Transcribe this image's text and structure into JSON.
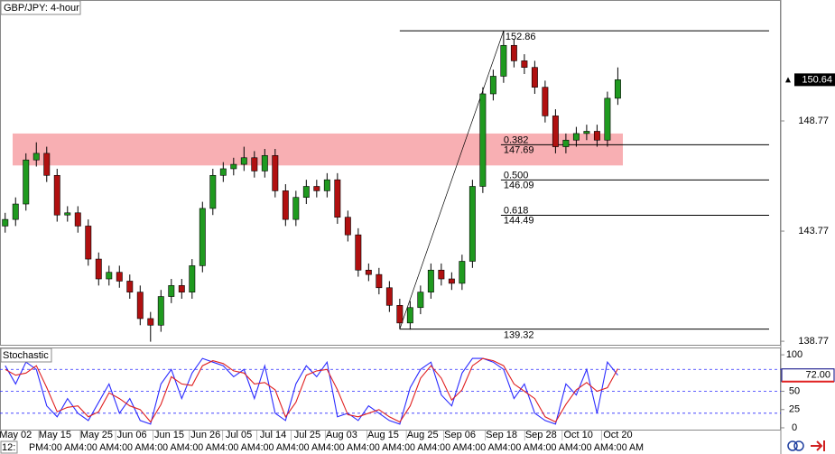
{
  "chart_data": {
    "type": "candlestick",
    "title": "GBP/JPY: 4-hour",
    "ylim": [
      138.61,
      154.26
    ],
    "yticks": [
      138.77,
      143.77,
      148.77
    ],
    "xlim": [
      -0.5,
      74.7
    ],
    "xticks": [
      {
        "value": 1,
        "label": "May 02"
      },
      {
        "value": 4.8,
        "label": "May 15"
      },
      {
        "value": 8.8,
        "label": "May 25"
      },
      {
        "value": 12.2,
        "label": "Jun 06"
      },
      {
        "value": 15.8,
        "label": "Jun 15"
      },
      {
        "value": 19.3,
        "label": "Jun 26"
      },
      {
        "value": 22.5,
        "label": "Jul 05"
      },
      {
        "value": 25.8,
        "label": "Jul 14"
      },
      {
        "value": 29.1,
        "label": "Jul 25"
      },
      {
        "value": 32.4,
        "label": "Aug 03"
      },
      {
        "value": 36.4,
        "label": "Aug 15"
      },
      {
        "value": 40.2,
        "label": "Aug 25"
      },
      {
        "value": 43.8,
        "label": "Sep 06"
      },
      {
        "value": 47.8,
        "label": "Sep 18"
      },
      {
        "value": 51.6,
        "label": "Sep 28"
      },
      {
        "value": 55.2,
        "label": "Oct 10"
      },
      {
        "value": 59.0,
        "label": "Oct 20"
      }
    ],
    "time_row": [
      "12:",
      "PM4:00 AM4:00 AM4:00 AM4:00 AM4:00 AM4:00 AM4:00 AM4:00 AM4:00 AM4:00 AM4:00 AM4:00 AM4:00 AM4:00 AM4:00 AM4:00 AM4:00 AM"
    ],
    "colors": {
      "up": "#1f9a1f",
      "down": "#b01010",
      "zone": "#f7a1a6"
    },
    "open": [
      144.0,
      144.3,
      145.0,
      147.0,
      147.3,
      146.3,
      144.5,
      144.6,
      144.0,
      142.5,
      141.6,
      141.9,
      141.5,
      141.0,
      139.8,
      139.5,
      140.8,
      141.3,
      141.0,
      142.2,
      144.8,
      146.3,
      146.6,
      146.8,
      147.1,
      146.5,
      147.2,
      145.6,
      144.3,
      145.3,
      145.8,
      145.6,
      146.1,
      144.4,
      143.6,
      142.0,
      141.8,
      141.2,
      140.4,
      139.6,
      140.3,
      141.0,
      142.0,
      141.6,
      141.4,
      142.4,
      145.8,
      150.0,
      150.8,
      152.2,
      151.5,
      151.2,
      150.3,
      149.0,
      147.6,
      147.9,
      148.2,
      148.3,
      147.9,
      149.8
    ],
    "high": [
      144.6,
      145.3,
      147.3,
      147.8,
      147.6,
      146.6,
      144.9,
      144.9,
      144.3,
      142.8,
      142.2,
      142.2,
      141.8,
      141.3,
      140.1,
      141.1,
      141.6,
      141.6,
      142.5,
      145.1,
      146.6,
      146.9,
      147.1,
      147.6,
      147.4,
      147.5,
      147.5,
      145.9,
      145.6,
      146.1,
      146.1,
      146.4,
      146.4,
      144.7,
      143.9,
      142.3,
      142.1,
      141.5,
      140.7,
      140.6,
      141.3,
      142.3,
      142.3,
      141.9,
      142.7,
      146.1,
      150.3,
      151.1,
      152.86,
      152.5,
      151.8,
      151.5,
      150.6,
      149.3,
      148.2,
      148.5,
      148.6,
      148.6,
      150.1,
      151.2
    ],
    "low": [
      143.7,
      144.0,
      144.7,
      146.7,
      146.0,
      144.2,
      144.2,
      143.7,
      142.2,
      141.3,
      141.3,
      141.2,
      140.7,
      139.5,
      138.75,
      139.2,
      140.5,
      140.7,
      140.7,
      141.9,
      144.5,
      146.0,
      146.3,
      146.5,
      146.2,
      146.2,
      145.3,
      144.0,
      144.0,
      145.0,
      145.3,
      145.3,
      144.1,
      143.3,
      141.7,
      141.5,
      140.9,
      140.1,
      139.32,
      139.3,
      140.0,
      140.7,
      141.3,
      141.1,
      141.1,
      142.1,
      145.5,
      149.7,
      150.5,
      151.2,
      150.9,
      150.0,
      148.7,
      147.3,
      147.3,
      147.6,
      147.9,
      147.6,
      147.6,
      149.5
    ],
    "close": [
      144.3,
      145.0,
      147.0,
      147.3,
      146.3,
      144.5,
      144.6,
      144.0,
      142.5,
      141.6,
      141.9,
      141.5,
      141.0,
      139.8,
      139.5,
      140.8,
      141.3,
      141.0,
      142.2,
      144.8,
      146.3,
      146.6,
      146.8,
      147.1,
      146.5,
      147.2,
      145.6,
      144.3,
      145.3,
      145.8,
      145.6,
      146.1,
      144.4,
      143.6,
      142.0,
      141.8,
      141.2,
      140.4,
      139.6,
      140.3,
      141.0,
      142.0,
      141.6,
      141.4,
      142.4,
      145.8,
      150.0,
      150.8,
      152.2,
      151.5,
      151.2,
      150.3,
      149.0,
      147.6,
      147.9,
      148.2,
      148.3,
      147.9,
      149.8,
      150.64
    ],
    "zone": [
      146.75,
      148.2
    ],
    "swing": {
      "from": 38,
      "to": 48,
      "high": 152.86,
      "low": 139.32
    },
    "fib": [
      {
        "ratio": 0.382,
        "price": 147.69
      },
      {
        "ratio": {
          "value": 0.5,
          "label": "0.500"
        },
        "price": 146.09
      },
      {
        "ratio": 0.618,
        "price": 144.49
      }
    ],
    "stochastic": {
      "title": "Stochastic",
      "ylim": [
        -2.5,
        110
      ],
      "yticks": [
        0,
        25,
        50,
        100
      ],
      "levels": [
        20,
        50,
        80
      ],
      "last_label": "72.00",
      "series": [
        {
          "color": "#2b2bff",
          "values": [
            85,
            60,
            90,
            80,
            30,
            15,
            40,
            20,
            10,
            35,
            60,
            20,
            40,
            10,
            5,
            60,
            80,
            40,
            75,
            95,
            90,
            85,
            70,
            80,
            40,
            85,
            20,
            10,
            60,
            85,
            70,
            90,
            15,
            20,
            10,
            30,
            20,
            10,
            5,
            55,
            80,
            90,
            45,
            30,
            75,
            95,
            95,
            90,
            80,
            40,
            60,
            20,
            10,
            5,
            60,
            45,
            80,
            20,
            90,
            72
          ]
        },
        {
          "color": "#e02020",
          "values": [
            80,
            72,
            75,
            85,
            55,
            22,
            28,
            30,
            15,
            22,
            48,
            40,
            30,
            25,
            8,
            32,
            70,
            60,
            58,
            85,
            92,
            88,
            78,
            75,
            60,
            62,
            52,
            15,
            35,
            72,
            78,
            80,
            52,
            18,
            15,
            20,
            25,
            15,
            8,
            30,
            68,
            85,
            68,
            38,
            52,
            85,
            95,
            92,
            85,
            60,
            50,
            40,
            15,
            8,
            32,
            52,
            62,
            50,
            55,
            81
          ]
        }
      ]
    }
  }
}
